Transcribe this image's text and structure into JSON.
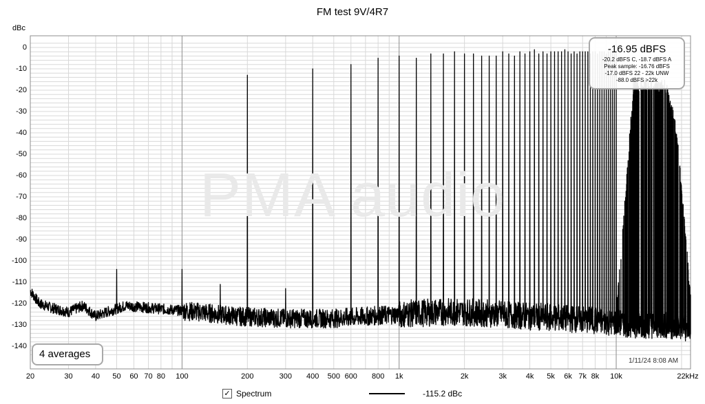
{
  "title": "FM test 9V/4R7",
  "y_unit": "dBc",
  "y_ticks": [
    "0",
    "-10",
    "-20",
    "-30",
    "-40",
    "-50",
    "-60",
    "-70",
    "-80",
    "-90",
    "-100",
    "-110",
    "-120",
    "-130",
    "-140"
  ],
  "x_ticks": [
    "20",
    "30",
    "40",
    "50",
    "60",
    "70",
    "80",
    "100",
    "200",
    "300",
    "400",
    "500",
    "600",
    "800",
    "1k",
    "2k",
    "3k",
    "4k",
    "5k",
    "6k",
    "7k",
    "8k",
    "10k",
    "22kHz"
  ],
  "watermark": "PMA audio",
  "info": {
    "level": "-16.95 dBFS",
    "line1": "-20.2 dBFS C, -18.7 dBFS A",
    "line2": "Peak sample: -16.76 dBFS",
    "line3": "-17.0 dBFS 22 - 22k UNW",
    "line4": "-88.0 dBFS >22k"
  },
  "averages_label": "4 averages",
  "timestamp": "1/11/24 8:08 AM",
  "legend": {
    "check_glyph": "✓",
    "series_label": "Spectrum",
    "value": "-115.2 dBc"
  },
  "colors": {
    "trace": "#000000",
    "grid_minor": "#d8d8d8",
    "grid_major": "#8c8c8c",
    "watermark": "#e9e9e9"
  },
  "chart_data": {
    "type": "line",
    "title": "FM test 9V/4R7",
    "ylabel": "dBc",
    "xlabel": "",
    "x_scale": "log",
    "xlim": [
      20,
      22000
    ],
    "ylim": [
      -145,
      3
    ],
    "grid": true,
    "series": [
      {
        "name": "Spectrum",
        "noise_floor_points": [
          [
            20,
            -114
          ],
          [
            22,
            -120
          ],
          [
            25,
            -122
          ],
          [
            30,
            -124
          ],
          [
            35,
            -121
          ],
          [
            40,
            -126
          ],
          [
            45,
            -124
          ],
          [
            55,
            -121
          ],
          [
            70,
            -122
          ],
          [
            90,
            -123
          ],
          [
            120,
            -124
          ],
          [
            180,
            -126
          ],
          [
            300,
            -127
          ],
          [
            500,
            -127
          ],
          [
            1000,
            -125
          ],
          [
            1500,
            -124
          ],
          [
            2000,
            -124
          ],
          [
            3000,
            -125
          ],
          [
            4000,
            -126
          ],
          [
            6000,
            -127
          ],
          [
            8000,
            -128
          ],
          [
            10000,
            -129
          ],
          [
            13000,
            -130
          ],
          [
            16000,
            -130
          ],
          [
            20000,
            -131
          ],
          [
            22000,
            -132
          ]
        ],
        "noise_floor_line": [
          [
            10000,
            -125
          ],
          [
            12000,
            -18
          ],
          [
            17000,
            -18
          ],
          [
            19000,
            -40
          ],
          [
            20500,
            -80
          ],
          [
            22000,
            -118
          ]
        ],
        "peaks": [
          [
            50,
            -104
          ],
          [
            100,
            -104
          ],
          [
            150,
            -111
          ],
          [
            200,
            -13
          ],
          [
            300,
            -113
          ],
          [
            400,
            -10
          ],
          [
            600,
            -8
          ],
          [
            800,
            -5
          ],
          [
            1000,
            -4
          ],
          [
            1200,
            -5
          ],
          [
            1400,
            -3
          ],
          [
            1600,
            -3
          ],
          [
            1800,
            -2
          ],
          [
            2000,
            -3
          ],
          [
            2200,
            -3
          ],
          [
            2400,
            -4
          ],
          [
            2600,
            -4
          ],
          [
            2800,
            -4
          ],
          [
            3000,
            -2
          ],
          [
            3200,
            -3
          ],
          [
            3400,
            -4
          ],
          [
            3600,
            -2
          ],
          [
            3800,
            -3
          ],
          [
            4000,
            -2
          ],
          [
            4200,
            -1
          ],
          [
            4400,
            -3
          ],
          [
            4600,
            -2
          ],
          [
            4800,
            -3
          ],
          [
            5000,
            -2
          ],
          [
            5200,
            -2
          ],
          [
            5400,
            -2
          ],
          [
            5600,
            -2
          ],
          [
            5800,
            -1
          ],
          [
            6000,
            -2
          ],
          [
            6200,
            -3
          ],
          [
            6400,
            -2
          ],
          [
            6600,
            -3
          ],
          [
            6800,
            -2
          ],
          [
            7000,
            -2
          ],
          [
            7200,
            -2
          ],
          [
            7400,
            -2
          ],
          [
            7600,
            -3
          ],
          [
            7800,
            -2
          ],
          [
            8000,
            -2
          ],
          [
            8200,
            -3
          ],
          [
            8400,
            -2
          ],
          [
            8600,
            -2
          ],
          [
            8800,
            -2
          ],
          [
            9000,
            -3
          ],
          [
            9200,
            -2
          ],
          [
            9400,
            -2
          ],
          [
            9600,
            -2
          ],
          [
            9800,
            -3
          ],
          [
            10000,
            -2
          ]
        ]
      }
    ]
  }
}
